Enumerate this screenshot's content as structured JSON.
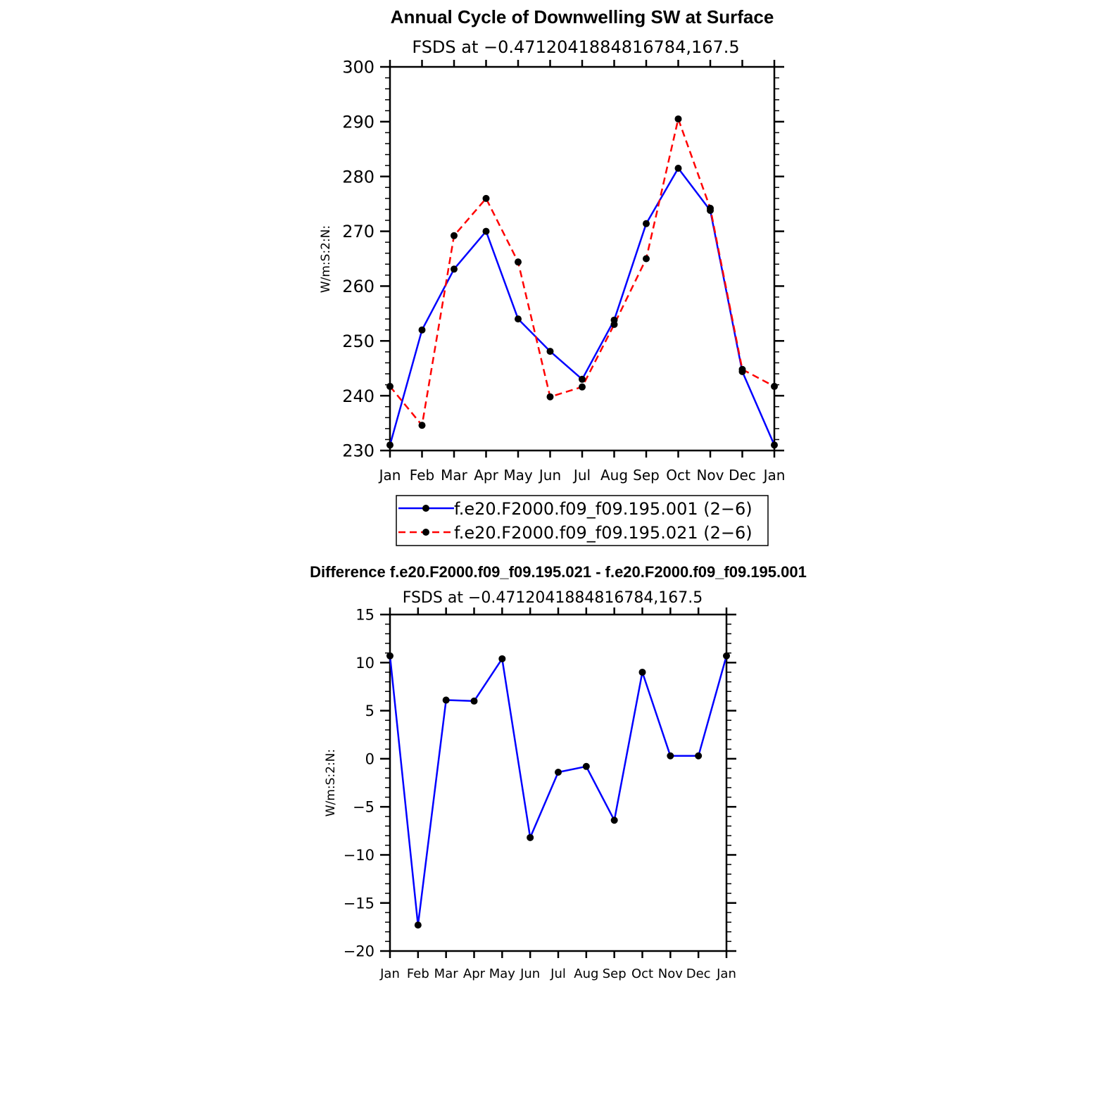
{
  "chart_data": [
    {
      "type": "line",
      "title": "Annual Cycle of Downwelling SW at Surface",
      "subtitle": "FSDS at −0.4712041884816784,167.5",
      "ylabel": "W/m:S:2:N:",
      "categories": [
        "Jan",
        "Feb",
        "Mar",
        "Apr",
        "May",
        "Jun",
        "Jul",
        "Aug",
        "Sep",
        "Oct",
        "Nov",
        "Dec",
        "Jan"
      ],
      "ylim": [
        230,
        300
      ],
      "yticks": [
        230,
        240,
        250,
        260,
        270,
        280,
        290,
        300
      ],
      "grid": false,
      "legend_position": "bottom",
      "series": [
        {
          "name": "f.e20.F2000.f09_f09.195.001 (2−6)",
          "color": "#0000ff",
          "style": "solid",
          "values": [
            231.0,
            252.0,
            263.1,
            270.0,
            254.0,
            248.1,
            243.0,
            253.8,
            271.4,
            281.5,
            273.8,
            244.4,
            231.0
          ]
        },
        {
          "name": "f.e20.F2000.f09_f09.195.021 (2−6)",
          "color": "#ff0000",
          "style": "dashed",
          "values": [
            241.7,
            234.6,
            269.2,
            276.0,
            264.4,
            239.8,
            241.6,
            253.0,
            265.0,
            290.5,
            274.2,
            244.8,
            241.7
          ]
        }
      ]
    },
    {
      "type": "line",
      "title": "Difference f.e20.F2000.f09_f09.195.021 - f.e20.F2000.f09_f09.195.001",
      "subtitle": "FSDS at −0.4712041884816784,167.5",
      "ylabel": "W/m:S:2:N:",
      "categories": [
        "Jan",
        "Feb",
        "Mar",
        "Apr",
        "May",
        "Jun",
        "Jul",
        "Aug",
        "Sep",
        "Oct",
        "Nov",
        "Dec",
        "Jan"
      ],
      "ylim": [
        -20,
        15
      ],
      "yticks": [
        -20,
        -15,
        -10,
        -5,
        0,
        5,
        10,
        15
      ],
      "ytick_labels": [
        "−20",
        "−15",
        "−10",
        "−5",
        "0",
        "5",
        "10",
        "15"
      ],
      "grid": false,
      "series": [
        {
          "color": "#0000ff",
          "style": "solid",
          "values": [
            10.7,
            -17.3,
            6.1,
            6.0,
            10.4,
            -8.2,
            -1.4,
            -0.8,
            -6.4,
            9.0,
            0.3,
            0.3,
            10.7
          ]
        }
      ]
    }
  ]
}
